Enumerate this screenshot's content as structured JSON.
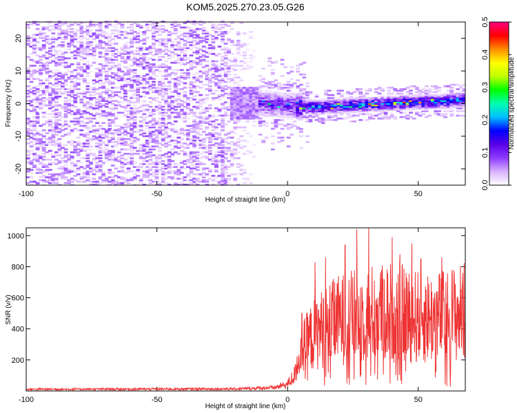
{
  "title": "KOM5.2025.270.23.05.G26",
  "chart_data": [
    {
      "type": "heatmap",
      "name": "spectrogram",
      "xlabel": "Height of straight line (km)",
      "ylabel": "Frequency (Hz)",
      "xlim": [
        -100,
        68
      ],
      "ylim": [
        -25,
        25
      ],
      "xticks": [
        -100,
        -50,
        0,
        50
      ],
      "yticks": [
        -20,
        -10,
        0,
        10,
        20
      ],
      "colorbar": {
        "label": "Normalized spectral amplitude",
        "range": [
          0,
          0.5
        ],
        "ticks": [
          0.0,
          0.1,
          0.2,
          0.3,
          0.4,
          0.5
        ],
        "tick_labels": [
          "0.0",
          "0.1",
          "0.2",
          "0.3",
          "0.4",
          "0.5"
        ],
        "colormap": [
          "#ffffff",
          "#d9b3ff",
          "#8c3cff",
          "#5a00e6",
          "#0000ff",
          "#00bfff",
          "#00ffb0",
          "#00ff00",
          "#c0ff00",
          "#ffff00",
          "#ff8c00",
          "#ff0000",
          "#ff0080"
        ]
      },
      "signal_ridge": {
        "x": [
          -12,
          0,
          10,
          20,
          30,
          40,
          50,
          60,
          68
        ],
        "y": [
          0.0,
          -0.8,
          -1.3,
          -0.8,
          -0.5,
          0.0,
          0.3,
          0.6,
          1.2
        ],
        "peak_amplitude": 0.5
      },
      "noise_region": {
        "x_range": [
          -100,
          -12
        ],
        "amplitude_range": [
          0.0,
          0.08
        ]
      }
    },
    {
      "type": "line",
      "name": "snr",
      "xlabel": "Height of straight line (km)",
      "ylabel": "SNR (v/v)",
      "xlim": [
        -100,
        68
      ],
      "ylim": [
        0,
        1050
      ],
      "xticks": [
        -100,
        -50,
        0,
        50
      ],
      "yticks": [
        200,
        400,
        600,
        800,
        1000
      ],
      "color": "#ee3333",
      "series": [
        {
          "name": "SNR",
          "envelope_x": [
            -100,
            -20,
            -5,
            0,
            3,
            5,
            8,
            12,
            20,
            30,
            40,
            50,
            60,
            68
          ],
          "envelope_y": [
            10,
            12,
            20,
            40,
            100,
            300,
            380,
            460,
            540,
            580,
            600,
            560,
            560,
            600
          ],
          "peaks": [
            {
              "x": 5.5,
              "y": 500
            },
            {
              "x": 10.5,
              "y": 830
            },
            {
              "x": 14.5,
              "y": 860
            },
            {
              "x": 18,
              "y": 700
            },
            {
              "x": 22,
              "y": 940
            },
            {
              "x": 26.5,
              "y": 1040
            },
            {
              "x": 31,
              "y": 1060
            },
            {
              "x": 36,
              "y": 780
            },
            {
              "x": 40,
              "y": 990
            },
            {
              "x": 43,
              "y": 880
            },
            {
              "x": 47.5,
              "y": 950
            },
            {
              "x": 51,
              "y": 850
            },
            {
              "x": 55,
              "y": 700
            },
            {
              "x": 59,
              "y": 860
            },
            {
              "x": 63,
              "y": 780
            },
            {
              "x": 67,
              "y": 760
            }
          ]
        }
      ]
    }
  ]
}
